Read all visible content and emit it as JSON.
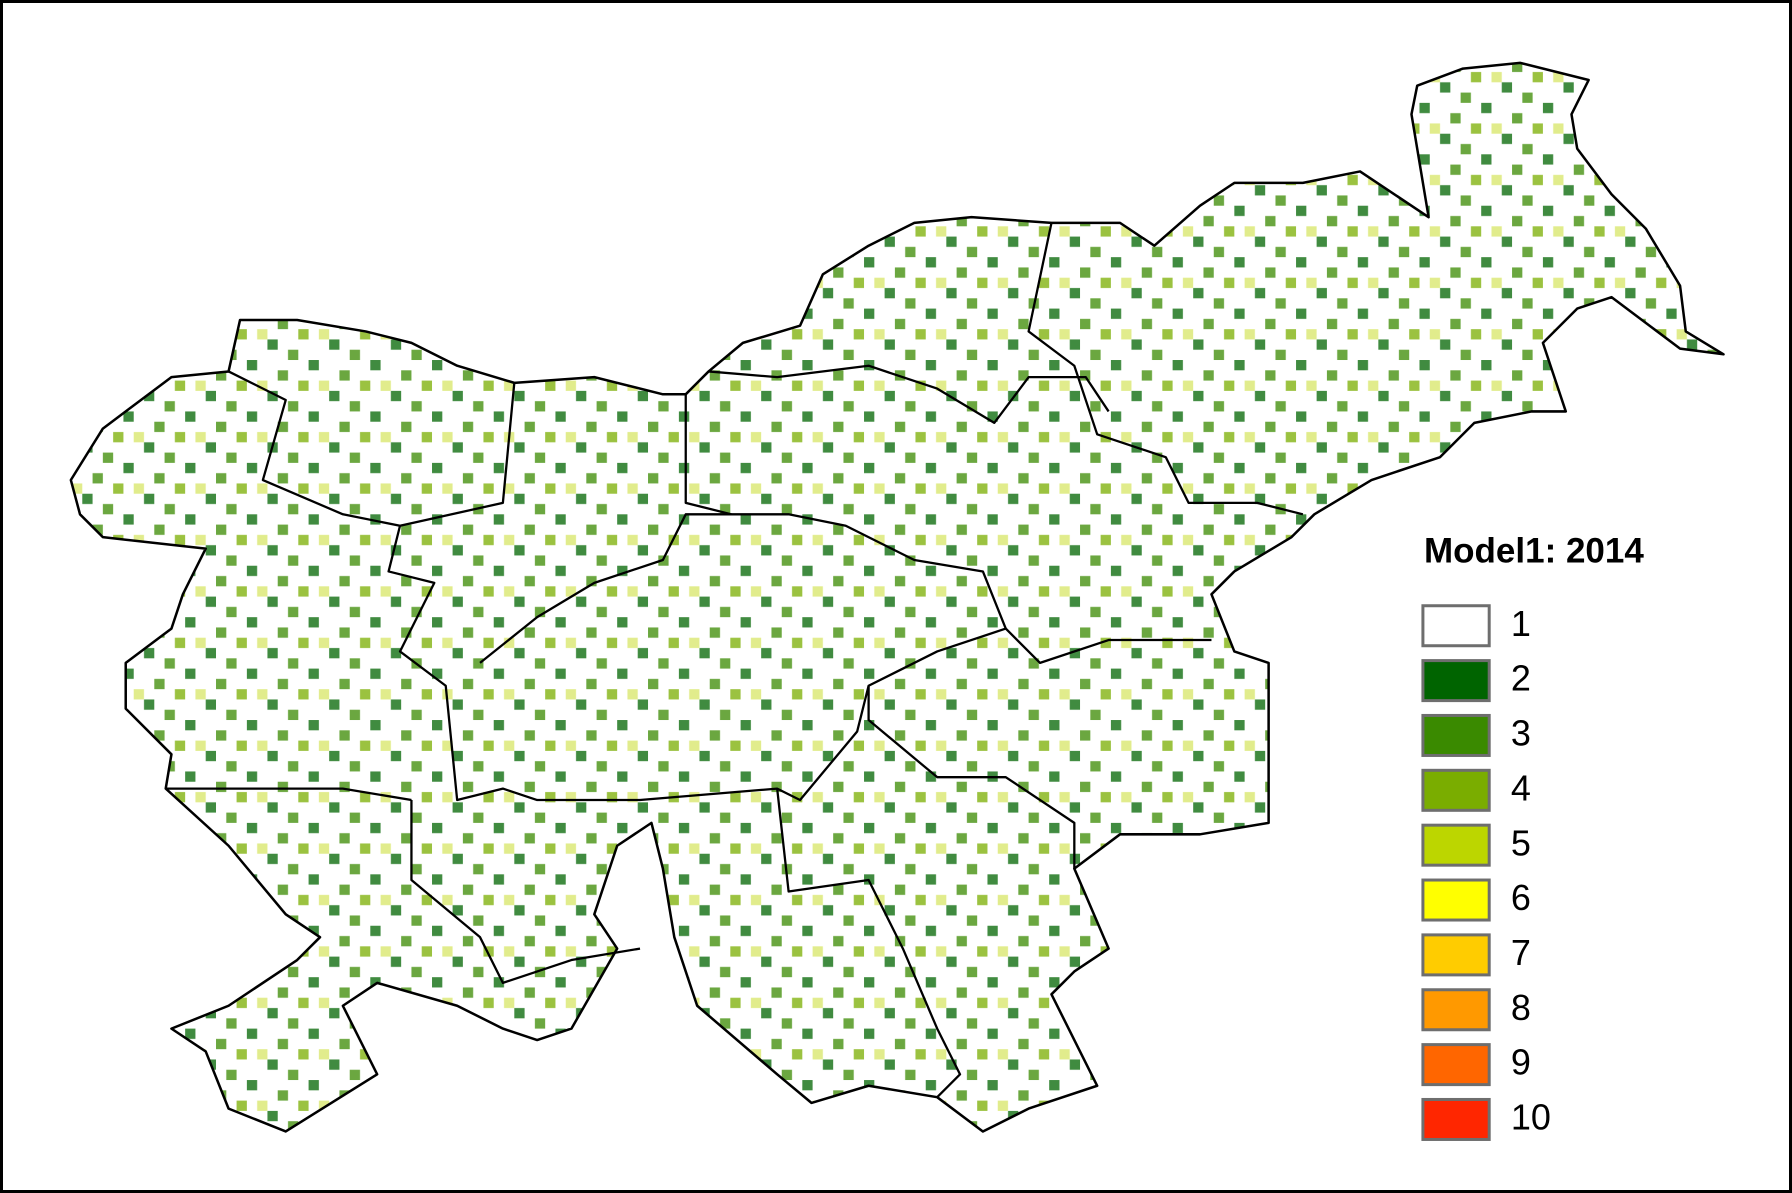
{
  "legend": {
    "title": "Model1: 2014",
    "classes": [
      {
        "value": 1,
        "color": "#ffffff"
      },
      {
        "value": 2,
        "color": "#006400"
      },
      {
        "value": 3,
        "color": "#3a8a00"
      },
      {
        "value": 4,
        "color": "#7aad00"
      },
      {
        "value": 5,
        "color": "#bcd600"
      },
      {
        "value": 6,
        "color": "#ffff00"
      },
      {
        "value": 7,
        "color": "#ffcc00"
      },
      {
        "value": 8,
        "color": "#ff9900"
      },
      {
        "value": 9,
        "color": "#ff6600"
      },
      {
        "value": 10,
        "color": "#ff2600"
      }
    ]
  }
}
